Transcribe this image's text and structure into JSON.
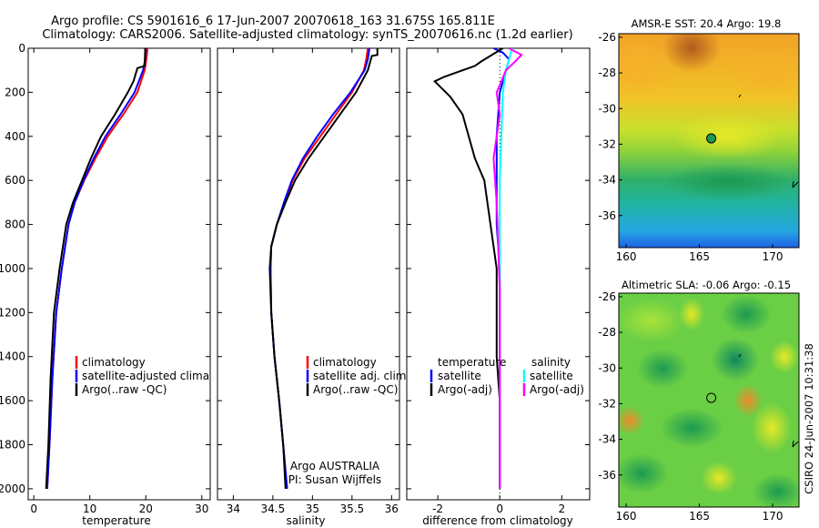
{
  "header": {
    "title_line1": "Argo profile: CS 5901616_6 17-Jun-2007 20070618_163 31.675S 165.811E",
    "title_line2": "Climatology: CARS2006. Satellite-adjusted climatology: synTS_20070616.nc (1.2d earlier)"
  },
  "side_label": "CSIRO 24-Jun-2007 10:31:38",
  "colors": {
    "climatology": "#ff0000",
    "satellite": "#0000ff",
    "argo": "#000000",
    "salinity_satellite": "#00ffff",
    "salinity_argo": "#ff00ff"
  },
  "chart_data": [
    {
      "type": "line",
      "name": "temperature-profile",
      "xlabel": "temperature",
      "xlim": [
        -1,
        31.5
      ],
      "ylim": [
        2050,
        0
      ],
      "xticks": [
        "0",
        "10",
        "20",
        "30"
      ],
      "yticks": [
        "0",
        "200",
        "400",
        "600",
        "800",
        "1000",
        "1200",
        "1400",
        "1600",
        "1800",
        "2000"
      ],
      "series": [
        {
          "name": "climatology",
          "color": "#ff0000",
          "x": [
            20.3,
            20.1,
            19.8,
            18.5,
            16.0,
            13.2,
            11.0,
            9.0,
            7.3,
            6.2,
            5.0,
            4.0,
            3.3,
            2.8,
            2.4
          ],
          "y": [
            0,
            50,
            100,
            200,
            300,
            400,
            500,
            600,
            700,
            800,
            1000,
            1200,
            1500,
            1800,
            2000
          ]
        },
        {
          "name": "satellite-adjusted climatology",
          "color": "#0000ff",
          "x": [
            20.0,
            19.9,
            19.5,
            18.0,
            15.5,
            12.8,
            10.7,
            8.9,
            7.3,
            6.2,
            5.0,
            4.0,
            3.3,
            2.8,
            2.4
          ],
          "y": [
            0,
            50,
            100,
            200,
            300,
            400,
            500,
            600,
            700,
            800,
            1000,
            1200,
            1500,
            1800,
            2000
          ]
        },
        {
          "name": "Argo(..raw -QC)",
          "color": "#000000",
          "x": [
            19.9,
            19.8,
            18.5,
            17.8,
            16.8,
            14.5,
            12.0,
            10.2,
            8.6,
            7.0,
            5.8,
            4.6,
            3.6,
            3.0,
            2.6,
            2.2
          ],
          "y": [
            0,
            80,
            90,
            150,
            200,
            300,
            400,
            500,
            600,
            700,
            800,
            1000,
            1200,
            1500,
            1800,
            2000
          ]
        }
      ],
      "legend": [
        "climatology",
        "satellite-adjusted climatology",
        "Argo(..raw -QC)"
      ]
    },
    {
      "type": "line",
      "name": "salinity-profile",
      "xlabel": "salinity",
      "xlim": [
        33.8,
        36.1
      ],
      "ylim": [
        2050,
        0
      ],
      "xticks": [
        "34",
        "34.5",
        "35",
        "35.5",
        "36"
      ],
      "series": [
        {
          "name": "climatology",
          "color": "#ff0000",
          "x": [
            35.7,
            35.68,
            35.65,
            35.5,
            35.3,
            35.1,
            34.9,
            34.75,
            34.65,
            34.55,
            34.48,
            34.47,
            34.48,
            34.52,
            34.58,
            34.63,
            34.68
          ],
          "y": [
            0,
            50,
            100,
            200,
            300,
            400,
            500,
            600,
            700,
            800,
            900,
            1000,
            1200,
            1400,
            1600,
            1800,
            2000
          ]
        },
        {
          "name": "satellite adj. clim.",
          "color": "#0000ff",
          "x": [
            35.72,
            35.7,
            35.66,
            35.48,
            35.26,
            35.06,
            34.88,
            34.74,
            34.64,
            34.55,
            34.48,
            34.47,
            34.48,
            34.52,
            34.58,
            34.63,
            34.68
          ],
          "y": [
            0,
            50,
            100,
            200,
            300,
            400,
            500,
            600,
            700,
            800,
            900,
            1000,
            1200,
            1400,
            1600,
            1800,
            2000
          ]
        },
        {
          "name": "Argo(..raw -QC)",
          "color": "#000000",
          "x": [
            35.82,
            35.82,
            35.75,
            35.7,
            35.55,
            35.35,
            35.15,
            34.95,
            34.78,
            34.66,
            34.55,
            34.48,
            34.46,
            34.48,
            34.52,
            34.58,
            34.63,
            34.66
          ],
          "y": [
            0,
            30,
            35,
            100,
            200,
            300,
            400,
            500,
            600,
            700,
            800,
            900,
            1000,
            1200,
            1400,
            1600,
            1800,
            2000
          ]
        }
      ],
      "legend": [
        "climatology",
        "satellite adj. clim.",
        "Argo(..raw -QC)"
      ],
      "annotation": [
        "Argo AUSTRALIA",
        "PI: Susan Wijffels"
      ]
    },
    {
      "type": "line",
      "name": "difference-profile",
      "xlabel": "difference from climatology",
      "xlim": [
        -3.0,
        2.9
      ],
      "ylim": [
        2050,
        0
      ],
      "xticks": [
        "-2",
        "0",
        "2"
      ],
      "series": [
        {
          "name": "temperature satellite",
          "color": "#0000ff",
          "x": [
            -0.2,
            0.1,
            0.3,
            0.2,
            0.0,
            -0.1,
            -0.1,
            -0.1,
            0.0,
            0.0,
            0.0,
            0.0
          ],
          "y": [
            0,
            20,
            50,
            100,
            200,
            400,
            600,
            800,
            1000,
            1200,
            1600,
            2000
          ]
        },
        {
          "name": "temperature Argo(-adj)",
          "color": "#000000",
          "x": [
            0.1,
            -0.6,
            -0.8,
            -1.8,
            -2.1,
            -1.6,
            -1.2,
            -1.0,
            -0.8,
            -0.5,
            -0.4,
            -0.3,
            -0.2,
            -0.1,
            -0.1,
            -0.1,
            0.0,
            0.0
          ],
          "y": [
            0,
            60,
            80,
            130,
            150,
            220,
            300,
            400,
            500,
            600,
            700,
            800,
            900,
            1000,
            1200,
            1400,
            1600,
            2000
          ]
        },
        {
          "name": "salinity satellite",
          "color": "#00ffff",
          "x": [
            0.4,
            0.3,
            0.2,
            0.1,
            0.05,
            0.0,
            0.0,
            0.0,
            0.0,
            0.0,
            0.0
          ],
          "y": [
            0,
            50,
            100,
            200,
            400,
            600,
            800,
            1000,
            1200,
            1600,
            2000
          ]
        },
        {
          "name": "salinity Argo(-adj)",
          "color": "#ff00ff",
          "x": [
            0.3,
            0.7,
            0.5,
            0.2,
            -0.1,
            0.0,
            -0.2,
            -0.1,
            -0.05,
            0.0,
            0.0,
            0.0,
            0.0
          ],
          "y": [
            0,
            30,
            60,
            100,
            200,
            300,
            500,
            700,
            900,
            1100,
            1300,
            1600,
            2000
          ]
        }
      ],
      "legend_headers": [
        "temperature",
        "salinity"
      ],
      "legend_left": [
        "satellite",
        "Argo(-adj)"
      ],
      "legend_right": [
        "satellite",
        "Argo(-adj)"
      ]
    },
    {
      "type": "heatmap",
      "name": "sst-map",
      "title": "AMSR-E SST: 20.4 Argo: 19.8",
      "xlim": [
        159.5,
        171.8
      ],
      "ylim": [
        -37.8,
        -25.8
      ],
      "xticks": [
        "160",
        "165",
        "170"
      ],
      "yticks": [
        "-26",
        "-28",
        "-30",
        "-32",
        "-34",
        "-36"
      ],
      "profile_location": [
        165.811,
        -31.675
      ]
    },
    {
      "type": "heatmap",
      "name": "sla-map",
      "title": "Altimetric SLA: -0.06 Argo: -0.15",
      "xlim": [
        159.5,
        171.8
      ],
      "ylim": [
        -37.8,
        -25.8
      ],
      "xticks": [
        "160",
        "165",
        "170"
      ],
      "yticks": [
        "-26",
        "-28",
        "-30",
        "-32",
        "-34",
        "-36"
      ],
      "profile_location": [
        165.811,
        -31.675
      ]
    }
  ]
}
